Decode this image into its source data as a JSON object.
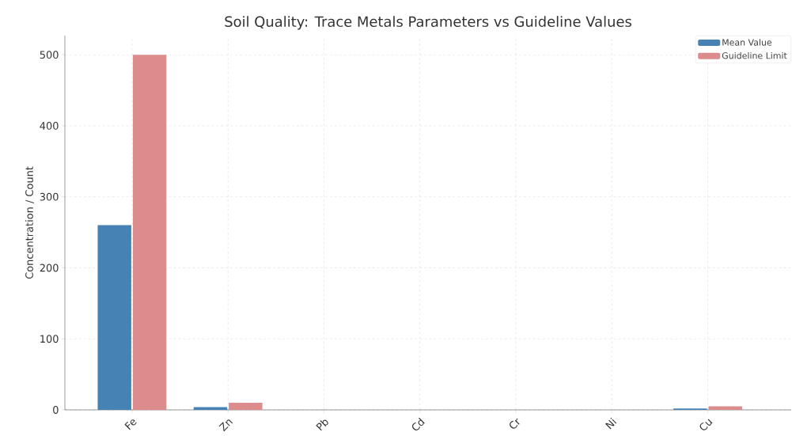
{
  "chart_data": {
    "type": "bar",
    "title": "Soil Quality: Trace Metals Parameters vs Guideline Values",
    "ylabel": "Concentration / Count",
    "categories": [
      "Fe",
      "Zn",
      "Pb",
      "Cd",
      "Cr",
      "Ni",
      "Cu"
    ],
    "series": [
      {
        "name": "Mean Value",
        "color": "#4682b4",
        "values": [
          260,
          4,
          0,
          0,
          0,
          0,
          2
        ]
      },
      {
        "name": "Guideline Limit",
        "color": "#dc8c8c",
        "values": [
          500,
          10,
          0,
          0,
          0,
          0,
          5
        ]
      }
    ],
    "ylim": [
      0,
      527
    ],
    "yticks": [
      0,
      100,
      200,
      300,
      400,
      500
    ],
    "grid": true,
    "legend": "top right"
  }
}
